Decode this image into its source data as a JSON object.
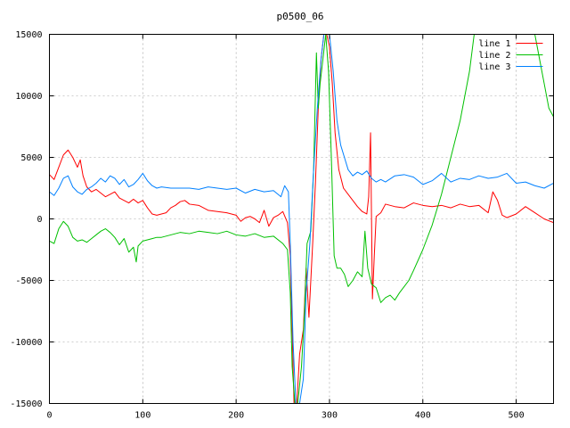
{
  "chart_data": {
    "type": "line",
    "title": "p0500_06",
    "xlabel": "",
    "ylabel": "",
    "xlim": [
      0,
      540
    ],
    "ylim": [
      -15000,
      15000
    ],
    "xticks": [
      0,
      100,
      200,
      300,
      400,
      500
    ],
    "yticks": [
      -15000,
      -10000,
      -5000,
      0,
      5000,
      10000,
      15000
    ],
    "grid": true,
    "legend_position": "top-right",
    "series": [
      {
        "name": "line 1",
        "color": "#ff0000",
        "points": [
          [
            0,
            3600
          ],
          [
            5,
            3200
          ],
          [
            10,
            4200
          ],
          [
            15,
            5200
          ],
          [
            20,
            5600
          ],
          [
            25,
            5000
          ],
          [
            30,
            4200
          ],
          [
            33,
            4800
          ],
          [
            36,
            3500
          ],
          [
            40,
            2600
          ],
          [
            45,
            2200
          ],
          [
            50,
            2400
          ],
          [
            55,
            2100
          ],
          [
            60,
            1800
          ],
          [
            65,
            2000
          ],
          [
            70,
            2200
          ],
          [
            75,
            1700
          ],
          [
            80,
            1500
          ],
          [
            85,
            1300
          ],
          [
            90,
            1600
          ],
          [
            95,
            1300
          ],
          [
            100,
            1500
          ],
          [
            105,
            900
          ],
          [
            110,
            400
          ],
          [
            115,
            300
          ],
          [
            120,
            400
          ],
          [
            125,
            500
          ],
          [
            130,
            900
          ],
          [
            135,
            1100
          ],
          [
            140,
            1400
          ],
          [
            145,
            1500
          ],
          [
            150,
            1200
          ],
          [
            160,
            1100
          ],
          [
            170,
            700
          ],
          [
            180,
            600
          ],
          [
            190,
            500
          ],
          [
            200,
            300
          ],
          [
            205,
            -200
          ],
          [
            210,
            100
          ],
          [
            215,
            200
          ],
          [
            220,
            0
          ],
          [
            225,
            -300
          ],
          [
            230,
            700
          ],
          [
            235,
            -600
          ],
          [
            240,
            100
          ],
          [
            245,
            300
          ],
          [
            250,
            600
          ],
          [
            255,
            -300
          ],
          [
            258,
            -3000
          ],
          [
            260,
            -9000
          ],
          [
            262,
            -15000
          ],
          [
            265,
            -15000
          ],
          [
            268,
            -11000
          ],
          [
            272,
            -9000
          ],
          [
            275,
            -4000
          ],
          [
            278,
            -8000
          ],
          [
            282,
            -2000
          ],
          [
            285,
            3000
          ],
          [
            288,
            9000
          ],
          [
            291,
            13000
          ],
          [
            294,
            15000
          ],
          [
            297,
            15000
          ],
          [
            300,
            14000
          ],
          [
            303,
            11000
          ],
          [
            306,
            7000
          ],
          [
            310,
            4000
          ],
          [
            315,
            2500
          ],
          [
            320,
            2000
          ],
          [
            325,
            1500
          ],
          [
            330,
            1000
          ],
          [
            335,
            600
          ],
          [
            340,
            400
          ],
          [
            342,
            1800
          ],
          [
            344,
            7000
          ],
          [
            346,
            -6500
          ],
          [
            348,
            -3000
          ],
          [
            350,
            200
          ],
          [
            355,
            500
          ],
          [
            360,
            1200
          ],
          [
            370,
            1000
          ],
          [
            380,
            900
          ],
          [
            390,
            1300
          ],
          [
            400,
            1100
          ],
          [
            410,
            1000
          ],
          [
            420,
            1100
          ],
          [
            430,
            900
          ],
          [
            440,
            1200
          ],
          [
            450,
            1000
          ],
          [
            460,
            1100
          ],
          [
            470,
            500
          ],
          [
            475,
            2200
          ],
          [
            480,
            1500
          ],
          [
            485,
            300
          ],
          [
            490,
            100
          ],
          [
            500,
            400
          ],
          [
            510,
            1000
          ],
          [
            520,
            500
          ],
          [
            530,
            0
          ],
          [
            540,
            -300
          ]
        ]
      },
      {
        "name": "line 2",
        "color": "#00c000",
        "points": [
          [
            0,
            -1800
          ],
          [
            5,
            -2000
          ],
          [
            10,
            -800
          ],
          [
            15,
            -200
          ],
          [
            20,
            -600
          ],
          [
            25,
            -1500
          ],
          [
            30,
            -1800
          ],
          [
            35,
            -1700
          ],
          [
            40,
            -1900
          ],
          [
            45,
            -1600
          ],
          [
            50,
            -1300
          ],
          [
            55,
            -1000
          ],
          [
            60,
            -800
          ],
          [
            65,
            -1100
          ],
          [
            70,
            -1500
          ],
          [
            75,
            -2100
          ],
          [
            80,
            -1600
          ],
          [
            85,
            -2700
          ],
          [
            90,
            -2300
          ],
          [
            93,
            -3500
          ],
          [
            95,
            -2200
          ],
          [
            100,
            -1800
          ],
          [
            105,
            -1700
          ],
          [
            110,
            -1600
          ],
          [
            115,
            -1500
          ],
          [
            120,
            -1500
          ],
          [
            130,
            -1300
          ],
          [
            140,
            -1100
          ],
          [
            150,
            -1200
          ],
          [
            160,
            -1000
          ],
          [
            170,
            -1100
          ],
          [
            180,
            -1200
          ],
          [
            190,
            -1000
          ],
          [
            200,
            -1300
          ],
          [
            210,
            -1400
          ],
          [
            220,
            -1200
          ],
          [
            230,
            -1500
          ],
          [
            240,
            -1400
          ],
          [
            250,
            -2000
          ],
          [
            255,
            -2500
          ],
          [
            258,
            -6000
          ],
          [
            260,
            -12000
          ],
          [
            263,
            -15000
          ],
          [
            266,
            -15000
          ],
          [
            270,
            -12000
          ],
          [
            273,
            -8000
          ],
          [
            276,
            -2000
          ],
          [
            280,
            -1000
          ],
          [
            283,
            4000
          ],
          [
            286,
            13500
          ],
          [
            288,
            9000
          ],
          [
            290,
            11000
          ],
          [
            293,
            13000
          ],
          [
            296,
            15000
          ],
          [
            299,
            12000
          ],
          [
            302,
            5000
          ],
          [
            305,
            -3000
          ],
          [
            308,
            -4000
          ],
          [
            312,
            -4000
          ],
          [
            316,
            -4500
          ],
          [
            320,
            -5500
          ],
          [
            325,
            -5000
          ],
          [
            330,
            -4300
          ],
          [
            335,
            -4700
          ],
          [
            338,
            -1000
          ],
          [
            341,
            -4000
          ],
          [
            345,
            -5300
          ],
          [
            350,
            -5600
          ],
          [
            355,
            -6800
          ],
          [
            360,
            -6400
          ],
          [
            365,
            -6200
          ],
          [
            370,
            -6600
          ],
          [
            375,
            -6000
          ],
          [
            380,
            -5500
          ],
          [
            385,
            -5000
          ],
          [
            390,
            -4200
          ],
          [
            400,
            -2500
          ],
          [
            410,
            -500
          ],
          [
            420,
            2000
          ],
          [
            430,
            5000
          ],
          [
            440,
            8000
          ],
          [
            450,
            12000
          ],
          [
            455,
            15000
          ],
          [
            460,
            15000
          ],
          [
            520,
            15000
          ],
          [
            525,
            13000
          ],
          [
            530,
            11000
          ],
          [
            535,
            9000
          ],
          [
            540,
            8300
          ]
        ]
      },
      {
        "name": "line 3",
        "color": "#0080ff",
        "points": [
          [
            0,
            2200
          ],
          [
            5,
            1900
          ],
          [
            10,
            2500
          ],
          [
            15,
            3300
          ],
          [
            20,
            3500
          ],
          [
            25,
            2600
          ],
          [
            30,
            2200
          ],
          [
            35,
            2000
          ],
          [
            40,
            2400
          ],
          [
            45,
            2600
          ],
          [
            50,
            2900
          ],
          [
            55,
            3300
          ],
          [
            60,
            3000
          ],
          [
            65,
            3500
          ],
          [
            70,
            3300
          ],
          [
            75,
            2800
          ],
          [
            80,
            3200
          ],
          [
            85,
            2600
          ],
          [
            90,
            2800
          ],
          [
            95,
            3200
          ],
          [
            100,
            3700
          ],
          [
            105,
            3100
          ],
          [
            110,
            2700
          ],
          [
            115,
            2500
          ],
          [
            120,
            2600
          ],
          [
            130,
            2500
          ],
          [
            140,
            2500
          ],
          [
            150,
            2500
          ],
          [
            160,
            2400
          ],
          [
            170,
            2600
          ],
          [
            180,
            2500
          ],
          [
            190,
            2400
          ],
          [
            200,
            2500
          ],
          [
            210,
            2100
          ],
          [
            220,
            2400
          ],
          [
            230,
            2200
          ],
          [
            240,
            2300
          ],
          [
            248,
            1800
          ],
          [
            252,
            2700
          ],
          [
            256,
            2200
          ],
          [
            258,
            -2000
          ],
          [
            261,
            -10000
          ],
          [
            264,
            -15000
          ],
          [
            268,
            -15000
          ],
          [
            272,
            -13000
          ],
          [
            275,
            -6000
          ],
          [
            279,
            -2000
          ],
          [
            283,
            4000
          ],
          [
            287,
            9000
          ],
          [
            291,
            13000
          ],
          [
            294,
            15000
          ],
          [
            300,
            15000
          ],
          [
            304,
            12000
          ],
          [
            308,
            8000
          ],
          [
            312,
            6000
          ],
          [
            316,
            5000
          ],
          [
            320,
            4000
          ],
          [
            325,
            3500
          ],
          [
            330,
            3800
          ],
          [
            335,
            3600
          ],
          [
            340,
            3900
          ],
          [
            345,
            3300
          ],
          [
            350,
            3000
          ],
          [
            355,
            3200
          ],
          [
            360,
            3000
          ],
          [
            370,
            3500
          ],
          [
            380,
            3600
          ],
          [
            390,
            3400
          ],
          [
            400,
            2800
          ],
          [
            410,
            3100
          ],
          [
            420,
            3700
          ],
          [
            430,
            3000
          ],
          [
            440,
            3300
          ],
          [
            450,
            3200
          ],
          [
            460,
            3500
          ],
          [
            470,
            3300
          ],
          [
            480,
            3400
          ],
          [
            490,
            3700
          ],
          [
            500,
            2900
          ],
          [
            510,
            3000
          ],
          [
            520,
            2700
          ],
          [
            530,
            2500
          ],
          [
            540,
            2900
          ]
        ]
      }
    ]
  }
}
